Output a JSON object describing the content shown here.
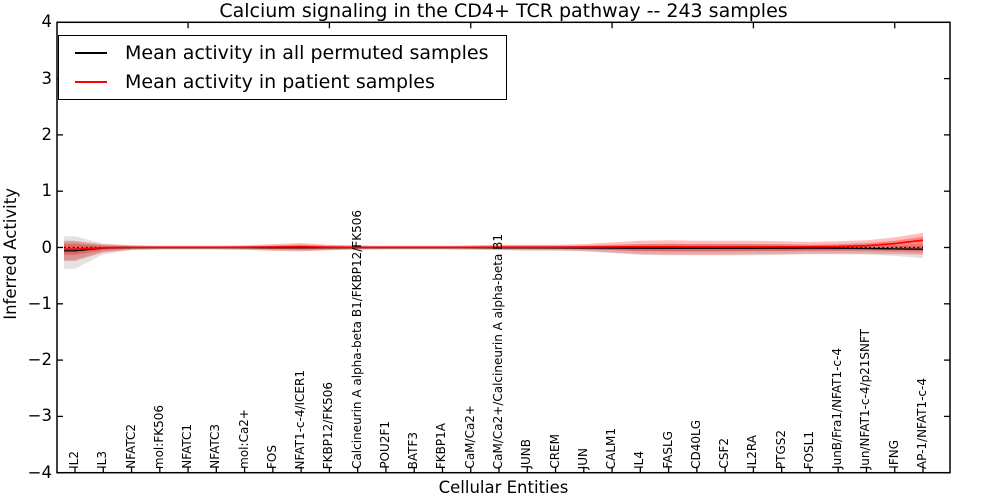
{
  "title": "Calcium signaling in the CD4+ TCR pathway -- 243 samples",
  "legend": {
    "items": [
      {
        "label": "Mean activity in all permuted samples",
        "color": "#000000"
      },
      {
        "label": "Mean activity in patient samples",
        "color": "#ff0000"
      }
    ]
  },
  "axes": {
    "xlabel": "Cellular Entities",
    "ylabel": "Inferred Activity",
    "ytick_labels": [
      "4",
      "3",
      "2",
      "1",
      "0",
      "−1",
      "−2",
      "−3",
      "−4"
    ],
    "ytick_values": [
      4,
      3,
      2,
      1,
      0,
      -1,
      -2,
      -3,
      -4
    ],
    "top_tick_indices": [
      4,
      9,
      14,
      19,
      24,
      29
    ]
  },
  "chart_data": {
    "type": "line",
    "title": "Calcium signaling in the CD4+ TCR pathway -- 243 samples",
    "xlabel": "Cellular Entities",
    "ylabel": "Inferred Activity",
    "ylim": [
      -4,
      4
    ],
    "grid": false,
    "legend_position": "upper left",
    "zero_line": {
      "y": 0,
      "style": "dotted",
      "color": "#000000"
    },
    "categories": [
      "IL2",
      "IL3",
      "NFATC2",
      "mol:FK506",
      "NFATC1",
      "NFATC3",
      "mol:Ca2+",
      "FOS",
      "NFAT1-c-4/ICER1",
      "FKBP12/FK506",
      "Calcineurin A alpha-beta B1/FKBP12/FK506",
      "POU2F1",
      "BATF3",
      "FKBP1A",
      "CaM/Ca2+",
      "CaM/Ca2+/Calcineurin A alpha-beta B1",
      "JUNB",
      "CREM",
      "JUN",
      "CALM1",
      "IL4",
      "FASLG",
      "CD40LG",
      "CSF2",
      "IL2RA",
      "PTGS2",
      "FOSL1",
      "JunB/Fra1/NFAT1-c-4",
      "Jun/NFAT1-c-4/p21SNFT",
      "IFNG",
      "AP-1/NFAT1-c-4"
    ],
    "series": [
      {
        "name": "Mean activity in all permuted samples",
        "color": "#000000",
        "width": 1.3,
        "values": [
          -0.06,
          -0.01,
          -0.002,
          -0.002,
          -0.002,
          -0.002,
          -0.002,
          -0.004,
          -0.004,
          -0.002,
          -0.002,
          -0.002,
          -0.002,
          -0.002,
          -0.002,
          -0.003,
          -0.004,
          -0.005,
          -0.008,
          -0.01,
          -0.013,
          -0.015,
          -0.015,
          -0.015,
          -0.014,
          -0.012,
          -0.011,
          -0.013,
          -0.018,
          -0.024,
          -0.03
        ]
      },
      {
        "name": "Mean activity in patient samples",
        "color": "#ff0000",
        "width": 1.6,
        "values": [
          -0.03,
          -0.006,
          0.003,
          0.003,
          0.003,
          0.003,
          0.005,
          0.008,
          0.012,
          0.005,
          0.003,
          0.003,
          0.003,
          0.003,
          0.004,
          0.006,
          0.006,
          0.006,
          0.007,
          0.01,
          0.012,
          0.012,
          0.011,
          0.011,
          0.011,
          0.011,
          0.012,
          0.016,
          0.032,
          0.07,
          0.13
        ]
      }
    ],
    "bands": [
      {
        "name": "permuted-outer-band",
        "fill": "#000000",
        "opacity": 0.11,
        "low": [
          -0.38,
          -0.12,
          -0.05,
          -0.04,
          -0.04,
          -0.04,
          -0.04,
          -0.05,
          -0.06,
          -0.05,
          -0.04,
          -0.04,
          -0.04,
          -0.04,
          -0.04,
          -0.05,
          -0.06,
          -0.06,
          -0.07,
          -0.1,
          -0.13,
          -0.14,
          -0.14,
          -0.14,
          -0.14,
          -0.13,
          -0.12,
          -0.12,
          -0.13,
          -0.15,
          -0.19
        ],
        "high": [
          0.2,
          0.07,
          0.04,
          0.03,
          0.03,
          0.03,
          0.03,
          0.04,
          0.05,
          0.04,
          0.03,
          0.03,
          0.03,
          0.03,
          0.03,
          0.04,
          0.04,
          0.04,
          0.04,
          0.05,
          0.06,
          0.06,
          0.06,
          0.06,
          0.06,
          0.06,
          0.05,
          0.05,
          0.05,
          0.05,
          0.06
        ]
      },
      {
        "name": "permuted-inner-band",
        "fill": "#000000",
        "opacity": 0.12,
        "low": [
          -0.22,
          -0.07,
          -0.03,
          -0.02,
          -0.02,
          -0.02,
          -0.02,
          -0.03,
          -0.03,
          -0.03,
          -0.02,
          -0.02,
          -0.02,
          -0.02,
          -0.02,
          -0.03,
          -0.03,
          -0.03,
          -0.04,
          -0.05,
          -0.07,
          -0.07,
          -0.07,
          -0.07,
          -0.07,
          -0.07,
          -0.06,
          -0.06,
          -0.07,
          -0.08,
          -0.1
        ],
        "high": [
          0.1,
          0.04,
          0.02,
          0.015,
          0.015,
          0.015,
          0.015,
          0.02,
          0.025,
          0.02,
          0.015,
          0.015,
          0.015,
          0.015,
          0.015,
          0.02,
          0.02,
          0.02,
          0.02,
          0.025,
          0.03,
          0.03,
          0.03,
          0.03,
          0.03,
          0.03,
          0.025,
          0.025,
          0.025,
          0.025,
          0.03
        ]
      },
      {
        "name": "patient-outer-band",
        "fill": "#ff0000",
        "opacity": 0.25,
        "low": [
          -0.24,
          -0.09,
          -0.04,
          -0.03,
          -0.03,
          -0.03,
          -0.04,
          -0.06,
          -0.07,
          -0.05,
          -0.035,
          -0.03,
          -0.03,
          -0.03,
          -0.035,
          -0.04,
          -0.05,
          -0.05,
          -0.06,
          -0.09,
          -0.12,
          -0.13,
          -0.13,
          -0.13,
          -0.12,
          -0.12,
          -0.11,
          -0.11,
          -0.11,
          -0.12,
          -0.13
        ],
        "high": [
          0.12,
          0.06,
          0.04,
          0.03,
          0.03,
          0.03,
          0.04,
          0.06,
          0.08,
          0.05,
          0.04,
          0.03,
          0.03,
          0.03,
          0.04,
          0.05,
          0.05,
          0.05,
          0.06,
          0.09,
          0.12,
          0.13,
          0.12,
          0.12,
          0.12,
          0.11,
          0.1,
          0.11,
          0.13,
          0.18,
          0.26
        ]
      },
      {
        "name": "patient-inner-band",
        "fill": "#ff0000",
        "opacity": 0.3,
        "low": [
          -0.13,
          -0.05,
          -0.02,
          -0.015,
          -0.015,
          -0.015,
          -0.02,
          -0.03,
          -0.04,
          -0.03,
          -0.02,
          -0.015,
          -0.015,
          -0.015,
          -0.02,
          -0.02,
          -0.025,
          -0.025,
          -0.03,
          -0.045,
          -0.06,
          -0.065,
          -0.065,
          -0.065,
          -0.06,
          -0.06,
          -0.055,
          -0.055,
          -0.05,
          -0.055,
          -0.06
        ],
        "high": [
          0.06,
          0.03,
          0.02,
          0.015,
          0.015,
          0.015,
          0.02,
          0.03,
          0.05,
          0.025,
          0.02,
          0.015,
          0.015,
          0.015,
          0.02,
          0.025,
          0.025,
          0.025,
          0.03,
          0.045,
          0.06,
          0.065,
          0.06,
          0.06,
          0.06,
          0.055,
          0.05,
          0.06,
          0.08,
          0.12,
          0.19
        ]
      }
    ]
  }
}
